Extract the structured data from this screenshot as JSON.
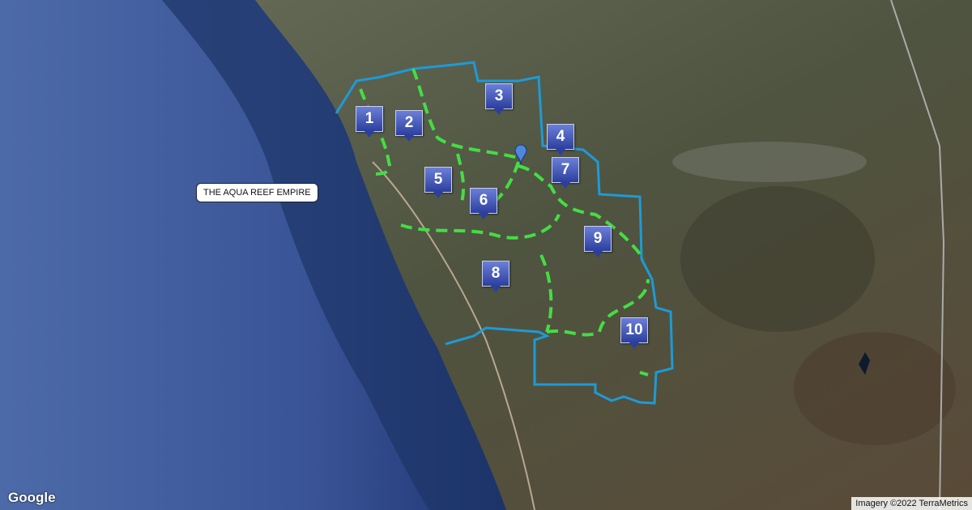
{
  "map": {
    "type": "satellite",
    "region_label": "THE AQUA REEF EMPIRE",
    "markers": [
      {
        "label": "1"
      },
      {
        "label": "2"
      },
      {
        "label": "3"
      },
      {
        "label": "4"
      },
      {
        "label": "5"
      },
      {
        "label": "6"
      },
      {
        "label": "7"
      },
      {
        "label": "8"
      },
      {
        "label": "9"
      },
      {
        "label": "10"
      }
    ],
    "boundary_color": "#1e9ad6",
    "district_line_color": "#44dd44",
    "marker_color": "#3a4fb8",
    "pin_icon": "map-pin-icon"
  },
  "branding": {
    "logo": "Google"
  },
  "attribution": "Imagery ©2022 TerraMetrics"
}
